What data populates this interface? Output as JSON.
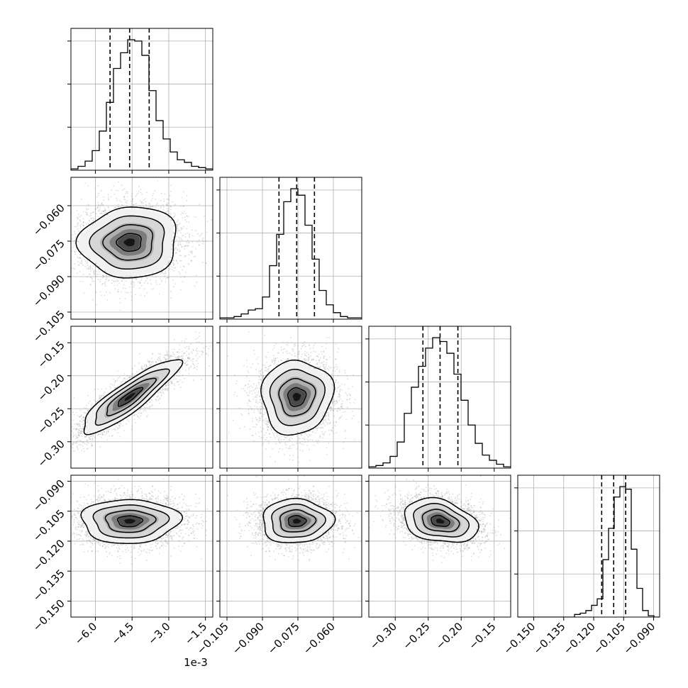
{
  "figure": {
    "type": "corner-plot",
    "parameters": 4,
    "background": "#ffffff",
    "line_color": "#000000",
    "scatter_color": "#9a9a9a",
    "grid": true,
    "offset_label": "1e-3"
  },
  "chart_data": {
    "type": "corner",
    "params": [
      {
        "id": "p1",
        "scale_text": "1e-3",
        "range": [
          -7.0,
          -1.2
        ],
        "ticks": [
          -6.0,
          -4.5,
          -3.0,
          -1.5
        ],
        "tick_labels": [
          "−6.0",
          "−4.5",
          "−3.0",
          "−1.5"
        ],
        "mean": -4.6,
        "sd": 1.0,
        "quantiles": [
          -5.4,
          -4.6,
          -3.8
        ],
        "hist_bins": [
          0.01,
          0.03,
          0.07,
          0.15,
          0.3,
          0.52,
          0.78,
          0.9,
          1.0,
          0.99,
          0.88,
          0.61,
          0.38,
          0.24,
          0.14,
          0.08,
          0.06,
          0.03,
          0.02,
          0.01
        ]
      },
      {
        "id": "p2",
        "range": [
          -0.108,
          -0.048
        ],
        "ticks": [
          -0.105,
          -0.09,
          -0.075,
          -0.06
        ],
        "tick_labels": [
          "−0.105",
          "−0.090",
          "−0.075",
          "−0.060"
        ],
        "mean": -0.0755,
        "sd": 0.0075,
        "quantiles": [
          -0.083,
          -0.0755,
          -0.068
        ],
        "hist_bins": [
          0.01,
          0.01,
          0.02,
          0.04,
          0.07,
          0.08,
          0.17,
          0.41,
          0.65,
          0.9,
          1.0,
          0.95,
          0.72,
          0.46,
          0.22,
          0.11,
          0.05,
          0.02,
          0.01,
          0.01
        ]
      },
      {
        "id": "p3",
        "range": [
          -0.34,
          -0.125
        ],
        "ticks": [
          -0.3,
          -0.25,
          -0.2,
          -0.15
        ],
        "tick_labels": [
          "−0.30",
          "−0.25",
          "−0.20",
          "−0.15"
        ],
        "mean": -0.232,
        "sd": 0.028,
        "quantiles": [
          -0.258,
          -0.232,
          -0.205
        ],
        "hist_bins": [
          0.01,
          0.02,
          0.04,
          0.09,
          0.2,
          0.42,
          0.62,
          0.78,
          0.92,
          1.0,
          0.97,
          0.88,
          0.72,
          0.52,
          0.33,
          0.19,
          0.1,
          0.06,
          0.03,
          0.01
        ]
      },
      {
        "id": "p4",
        "range": [
          -0.158,
          -0.087
        ],
        "ticks": [
          -0.15,
          -0.135,
          -0.12,
          -0.105,
          -0.09
        ],
        "tick_labels": [
          "−0.150",
          "−0.135",
          "−0.120",
          "−0.105",
          "−0.090"
        ],
        "mean": -0.11,
        "sd": 0.0055,
        "quantiles": [
          -0.116,
          -0.11,
          -0.104
        ],
        "hist_bins": [
          0.0,
          0.0,
          0.0,
          0.0,
          0.0,
          0.0,
          0.0,
          0.0,
          0.0,
          0.0,
          0.02,
          0.03,
          0.05,
          0.09,
          0.14,
          0.44,
          0.68,
          0.92,
          1.0,
          0.98,
          0.52,
          0.22,
          0.05,
          0.01,
          0.0
        ]
      }
    ],
    "correlations": {
      "1-0": 0.05,
      "2-0": 0.88,
      "2-1": 0.05,
      "3-0": 0.02,
      "3-1": 0.02,
      "3-2": -0.28
    },
    "contour_levels": [
      0.5,
      1.0,
      1.5,
      2.0
    ],
    "samples_per_panel": 3200
  }
}
